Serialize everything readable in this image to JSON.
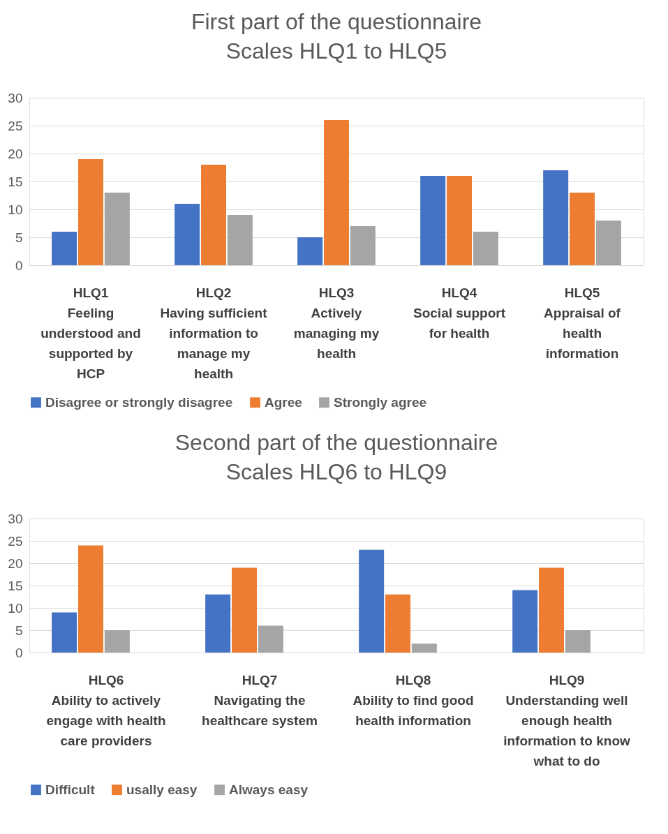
{
  "chart_data": [
    {
      "type": "bar",
      "title": "First part of the questionnaire\nScales HLQ1 to HLQ5",
      "categories": [
        "HLQ1\nFeeling\nunderstood and\nsupported by\nHCP",
        "HLQ2\nHaving sufficient\ninformation to\nmanage my\nhealth",
        "HLQ3\nActively\nmanaging my\nhealth",
        "HLQ4\nSocial support\nfor health",
        "HLQ5\nAppraisal of\nhealth\ninformation"
      ],
      "series": [
        {
          "name": "Disagree or strongly disagree",
          "color": "#4472c4",
          "values": [
            6,
            11,
            5,
            16,
            17
          ]
        },
        {
          "name": "Agree",
          "color": "#ed7d31",
          "values": [
            19,
            18,
            26,
            16,
            13
          ]
        },
        {
          "name": "Strongly agree",
          "color": "#a5a5a5",
          "values": [
            13,
            9,
            7,
            6,
            8
          ]
        }
      ],
      "ylim": [
        0,
        30
      ],
      "yticks": [
        0,
        5,
        10,
        15,
        20,
        25,
        30
      ],
      "grid": "y",
      "legend": "bottom"
    },
    {
      "type": "bar",
      "title": "Second part of the questionnaire\nScales HLQ6 to HLQ9",
      "categories": [
        "HLQ6\nAbility to actively\nengage with health\ncare providers",
        "HLQ7\nNavigating the\nhealthcare system",
        "HLQ8\nAbility to find good\nhealth information",
        "HLQ9\nUnderstanding well\nenough health\ninformation to know\nwhat to do"
      ],
      "series": [
        {
          "name": "Difficult",
          "color": "#4472c4",
          "values": [
            9,
            13,
            23,
            14
          ]
        },
        {
          "name": "usally easy",
          "color": "#ed7d31",
          "values": [
            24,
            19,
            13,
            19
          ]
        },
        {
          "name": "Always easy",
          "color": "#a5a5a5",
          "values": [
            5,
            6,
            2,
            5
          ]
        }
      ],
      "ylim": [
        0,
        30
      ],
      "yticks": [
        0,
        5,
        10,
        15,
        20,
        25,
        30
      ],
      "grid": "y",
      "legend": "bottom"
    }
  ]
}
